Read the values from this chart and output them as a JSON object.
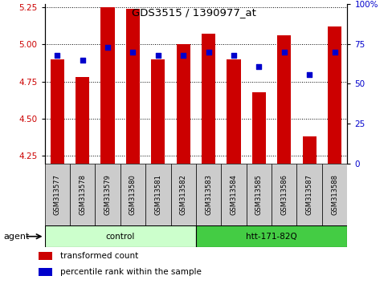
{
  "title": "GDS3515 / 1390977_at",
  "samples": [
    "GSM313577",
    "GSM313578",
    "GSM313579",
    "GSM313580",
    "GSM313581",
    "GSM313582",
    "GSM313583",
    "GSM313584",
    "GSM313585",
    "GSM313586",
    "GSM313587",
    "GSM313588"
  ],
  "bar_values": [
    4.9,
    4.78,
    5.25,
    5.24,
    4.9,
    5.0,
    5.07,
    4.9,
    4.68,
    5.06,
    4.38,
    5.12
  ],
  "dot_values": [
    68,
    65,
    73,
    70,
    68,
    68,
    70,
    68,
    61,
    70,
    56,
    70
  ],
  "bar_bottom": 4.2,
  "ylim_left": [
    4.2,
    5.27
  ],
  "ylim_right": [
    0,
    100
  ],
  "yticks_left": [
    4.25,
    4.5,
    4.75,
    5.0,
    5.25
  ],
  "yticks_right": [
    0,
    25,
    50,
    75,
    100
  ],
  "bar_color": "#CC0000",
  "dot_color": "#0000CC",
  "agent_groups": [
    {
      "label": "control",
      "start": 0,
      "end": 5,
      "color": "#CCFFCC"
    },
    {
      "label": "htt-171-82Q",
      "start": 6,
      "end": 11,
      "color": "#44CC44"
    }
  ],
  "agent_label": "agent",
  "legend_items": [
    {
      "color": "#CC0000",
      "label": "transformed count"
    },
    {
      "color": "#0000CC",
      "label": "percentile rank within the sample"
    }
  ],
  "bg_color": "#FFFFFF",
  "plot_bg": "#FFFFFF",
  "tick_label_color_left": "#CC0000",
  "tick_label_color_right": "#0000CC",
  "bar_width": 0.55,
  "sample_box_color": "#CCCCCC"
}
